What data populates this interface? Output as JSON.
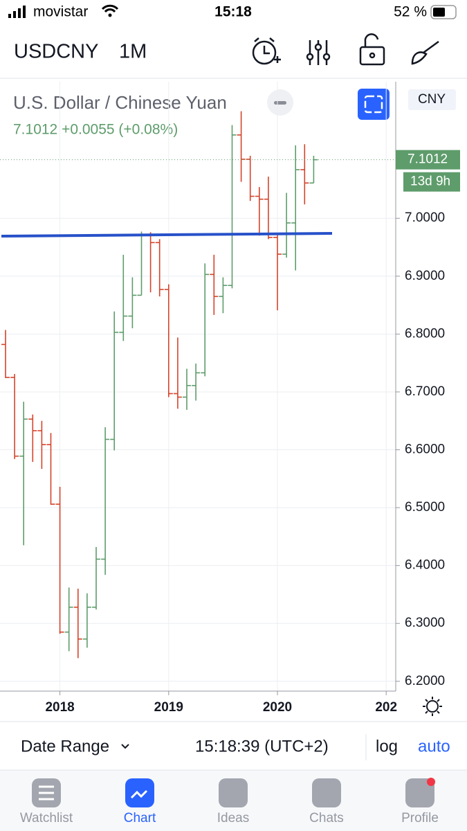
{
  "status_bar": {
    "carrier": "movistar",
    "time": "15:18",
    "battery": "52 %"
  },
  "header": {
    "symbol": "USDCNY",
    "interval": "1M"
  },
  "chart_data": {
    "type": "ohlc",
    "title": "U.S. Dollar / Chinese Yuan",
    "subtitle": "7.1012 +0.0055 (+0.08%)",
    "currency_label": "CNY",
    "last_price": 7.1012,
    "countdown": "13d 9h",
    "categories": [
      null,
      null,
      null,
      null,
      null,
      null,
      "2018",
      null,
      null,
      null,
      null,
      null,
      null,
      null,
      null,
      null,
      null,
      null,
      "2019",
      null,
      null,
      null,
      null,
      null,
      null,
      null,
      null,
      null,
      null,
      null,
      "2020",
      null,
      null,
      null,
      null,
      null,
      null,
      null,
      null,
      null,
      null,
      null,
      "202",
      null
    ],
    "open": [
      6.782,
      6.725,
      6.589,
      6.653,
      6.633,
      6.609,
      6.506,
      6.285,
      6.328,
      6.273,
      6.328,
      6.411,
      6.618,
      6.803,
      6.831,
      6.867,
      6.97,
      6.958,
      6.877,
      6.697,
      6.691,
      6.711,
      6.733,
      6.903,
      6.865,
      6.884,
      7.144,
      7.102,
      7.038,
      7.033,
      6.967,
      6.938,
      6.992,
      7.084,
      7.061,
      null,
      null,
      null,
      null,
      null,
      null,
      null,
      null,
      null
    ],
    "high": [
      6.807,
      6.731,
      6.683,
      6.661,
      6.65,
      6.629,
      6.536,
      6.362,
      6.36,
      6.352,
      6.432,
      6.639,
      6.839,
      6.937,
      6.898,
      6.977,
      6.976,
      6.964,
      6.886,
      6.794,
      6.74,
      6.749,
      6.922,
      6.937,
      6.898,
      7.161,
      7.185,
      7.108,
      7.054,
      7.072,
      6.972,
      7.044,
      7.126,
      7.128,
      7.108,
      null,
      null,
      null,
      null,
      null,
      null,
      null,
      null,
      null
    ],
    "low": [
      6.724,
      6.584,
      6.435,
      6.579,
      6.567,
      6.505,
      6.282,
      6.252,
      6.24,
      6.258,
      6.324,
      6.384,
      6.599,
      6.788,
      6.81,
      6.867,
      6.872,
      6.865,
      6.691,
      6.671,
      6.669,
      6.685,
      6.727,
      6.833,
      6.836,
      6.879,
      7.063,
      7.03,
      6.97,
      6.964,
      6.841,
      6.932,
      6.91,
      7.024,
      7.061,
      null,
      null,
      null,
      null,
      null,
      null,
      null,
      null,
      null
    ],
    "close": [
      6.725,
      6.589,
      6.653,
      6.633,
      6.609,
      6.506,
      6.285,
      6.328,
      6.273,
      6.328,
      6.411,
      6.618,
      6.803,
      6.831,
      6.867,
      6.97,
      6.958,
      6.877,
      6.697,
      6.691,
      6.711,
      6.733,
      6.903,
      6.865,
      6.884,
      7.144,
      7.102,
      7.038,
      7.033,
      6.967,
      6.938,
      6.992,
      7.084,
      7.061,
      7.1012,
      null,
      null,
      null,
      null,
      null,
      null,
      null,
      null,
      null
    ],
    "up_color": "#5e9c6b",
    "down_color": "#d4432a",
    "ylim": [
      6.183,
      7.236
    ],
    "yticks": [
      {
        "value": 6.2,
        "label": "6.2000"
      },
      {
        "value": 6.3,
        "label": "6.3000"
      },
      {
        "value": 6.4,
        "label": "6.4000"
      },
      {
        "value": 6.5,
        "label": "6.5000"
      },
      {
        "value": 6.6,
        "label": "6.6000"
      },
      {
        "value": 6.7,
        "label": "6.7000"
      },
      {
        "value": 6.8,
        "label": "6.8000"
      },
      {
        "value": 6.9,
        "label": "6.9000"
      },
      {
        "value": 7.0,
        "label": "7.0000"
      }
    ],
    "grid": true
  },
  "bottom_bar": {
    "date_range": "Date Range",
    "time": "15:18:39 (UTC+2)",
    "log": "log",
    "auto": "auto"
  },
  "tabs": [
    "Watchlist",
    "Chart",
    "Ideas",
    "Chats",
    "Profile"
  ]
}
